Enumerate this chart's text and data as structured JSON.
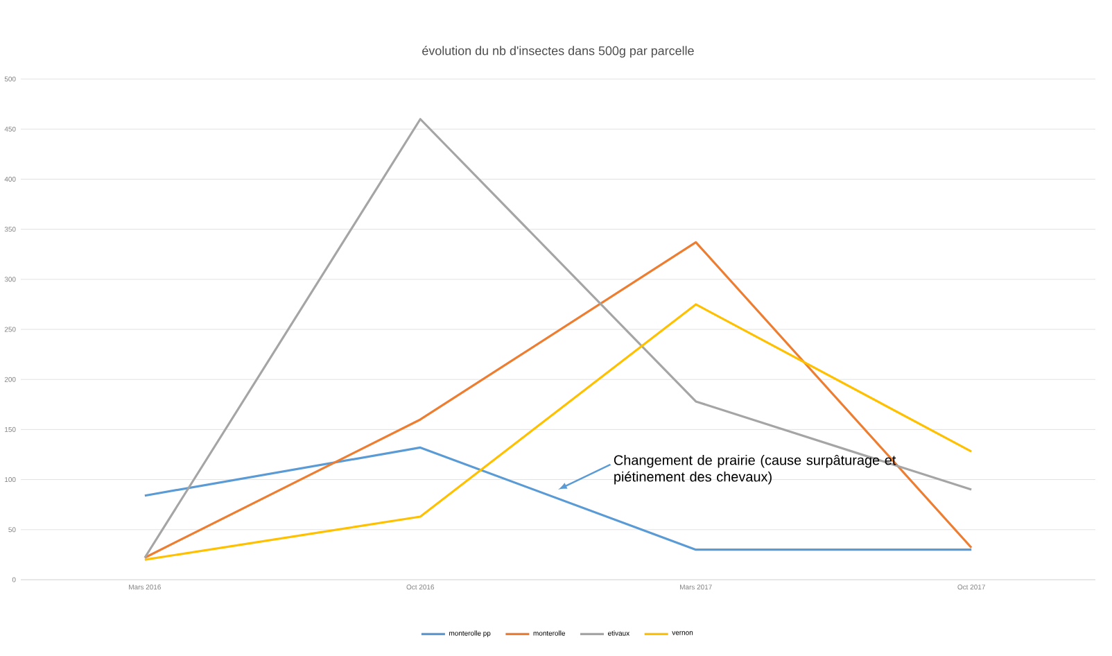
{
  "chart_data": {
    "type": "line",
    "title": "évolution du nb d'insectes dans 500g par parcelle",
    "categories": [
      "Mars 2016",
      "Oct 2016",
      "Mars 2017",
      "Oct 2017"
    ],
    "series": [
      {
        "name": "monterolle pp",
        "color": "#5b9bd5",
        "values": [
          84,
          132,
          30,
          30
        ]
      },
      {
        "name": "monterolle",
        "color": "#ed7d31",
        "values": [
          22,
          160,
          337,
          32
        ]
      },
      {
        "name": "etivaux",
        "color": "#a5a5a5",
        "values": [
          22,
          460,
          178,
          90
        ]
      },
      {
        "name": "vernon",
        "color": "#ffc000",
        "values": [
          20,
          63,
          275,
          128
        ]
      }
    ],
    "ylim": [
      0,
      500
    ],
    "yticks": [
      0,
      50,
      100,
      150,
      200,
      250,
      300,
      350,
      400,
      450,
      500
    ],
    "grid": "y",
    "legend": "bottom",
    "marker": "none",
    "line_style": "solid",
    "annotations": [
      "Changement de prairie (cause surpâturage et piétinement des chevaux)"
    ]
  }
}
